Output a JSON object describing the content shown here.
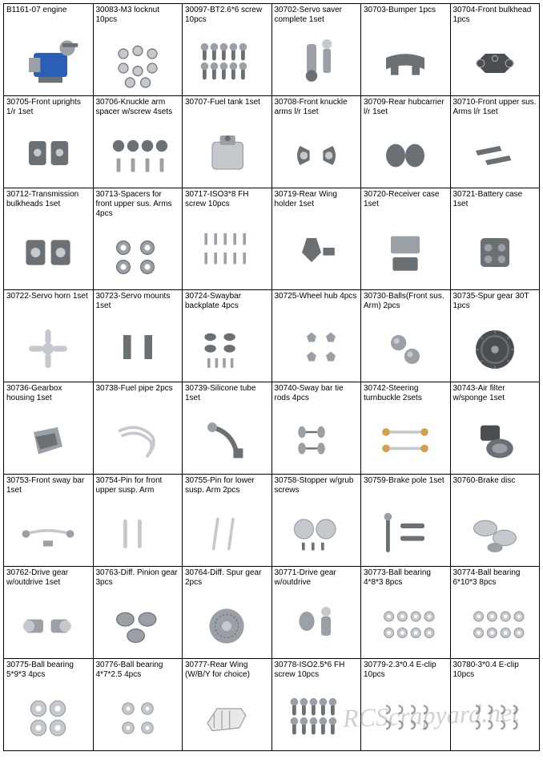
{
  "watermark": "RCScrapyard.net",
  "colors": {
    "border": "#000000",
    "text": "#000000",
    "partFill": "#9aa0a6",
    "partDark": "#6b7075",
    "partLight": "#c5c9cd",
    "engineBlue": "#2b5fb5"
  },
  "parts": [
    {
      "sku": "B1161-07 engine",
      "icon": "engine"
    },
    {
      "sku": "30083-M3 locknut 10pcs",
      "icon": "nuts"
    },
    {
      "sku": "30097-BT2.6*6 screw 10pcs",
      "icon": "screws10"
    },
    {
      "sku": "30702-Servo saver complete 1set",
      "icon": "servo-saver"
    },
    {
      "sku": "30703-Bumper 1pcs",
      "icon": "bumper"
    },
    {
      "sku": "30704-Front bulkhead 1pcs",
      "icon": "bulkhead-flat"
    },
    {
      "sku": "30705-Front uprights 1/r 1set",
      "icon": "uprights"
    },
    {
      "sku": "30706-Knuckle arm spacer w/screw 4sets",
      "icon": "spacer-screws"
    },
    {
      "sku": "30707-Fuel tank 1set",
      "icon": "fuel-tank"
    },
    {
      "sku": "30708-Front knuckle arms l/r 1set",
      "icon": "knuckles"
    },
    {
      "sku": "30709-Rear hubcarrier l/r 1set",
      "icon": "hubcarrier"
    },
    {
      "sku": "30710-Front upper sus. Arms l/r 1set",
      "icon": "arms"
    },
    {
      "sku": "30712-Transmission bulkheads 1set",
      "icon": "trans-bulk"
    },
    {
      "sku": "30713-Spacers for front upper sus. Arms 4pcs",
      "icon": "spacers4"
    },
    {
      "sku": "30717-ISO3*8 FH screw 10pcs",
      "icon": "fh-screws"
    },
    {
      "sku": "30719-Rear Wing holder 1set",
      "icon": "wing-holder"
    },
    {
      "sku": "30720-Receiver case 1set",
      "icon": "receiver-case"
    },
    {
      "sku": "30721-Battery case 1set",
      "icon": "battery-case"
    },
    {
      "sku": "30722-Servo horn 1set",
      "icon": "servo-horn"
    },
    {
      "sku": "30723-Servo mounts 1set",
      "icon": "servo-mounts"
    },
    {
      "sku": "30724-Swaybar backplate 4pcs",
      "icon": "backplate"
    },
    {
      "sku": "30725-Wheel hub 4pcs",
      "icon": "wheel-hub"
    },
    {
      "sku": "30730-Balls(Front sus. Arm) 2pcs",
      "icon": "balls2"
    },
    {
      "sku": "30735-Spur gear 30T 1pcs",
      "icon": "spur-gear"
    },
    {
      "sku": "30736-Gearbox housing 1set",
      "icon": "gearbox"
    },
    {
      "sku": "30738-Fuel pipe 2pcs",
      "icon": "fuel-pipe"
    },
    {
      "sku": "30739-Silicone tube 1set",
      "icon": "silicone-tube"
    },
    {
      "sku": "30740-Sway bar tie rods 4pcs",
      "icon": "tie-rods"
    },
    {
      "sku": "30742-Steering turnbuckle 2sets",
      "icon": "turnbuckle"
    },
    {
      "sku": "30743-Air filter w/sponge 1set",
      "icon": "air-filter"
    },
    {
      "sku": "30753-Front sway bar 1set",
      "icon": "sway-bar"
    },
    {
      "sku": "30754-Pin for front upper susp. Arm",
      "icon": "pins2"
    },
    {
      "sku": "30755-Pin for lower susp. Arm 2pcs",
      "icon": "pins2b"
    },
    {
      "sku": "30758-Stopper w/grub screws",
      "icon": "stoppers"
    },
    {
      "sku": "30759-Brake pole 1set",
      "icon": "brake-pole"
    },
    {
      "sku": "30760-Brake disc",
      "icon": "brake-disc"
    },
    {
      "sku": "30762-Drive gear w/outdrive 1set",
      "icon": "drive-gear"
    },
    {
      "sku": "30763-Diff. Pinion gear 3pcs",
      "icon": "pinion3"
    },
    {
      "sku": "30764-Diff. Spur gear 2pcs",
      "icon": "diff-spur"
    },
    {
      "sku": "30771-Drive gear w/outdrive",
      "icon": "drive-gear2"
    },
    {
      "sku": "30773-Ball bearing 4*8*3 8pcs",
      "icon": "bearings8"
    },
    {
      "sku": "30774-Ball bearing 6*10*3 8pcs",
      "icon": "bearings8b"
    },
    {
      "sku": "30775-Ball bearing 5*9*3 4pcs",
      "icon": "bearings4"
    },
    {
      "sku": "30776-Ball bearing 4*7*2.5 4pcs",
      "icon": "bearings4b"
    },
    {
      "sku": "30777-Rear Wing (W/B/Y for choice)",
      "icon": "rear-wing"
    },
    {
      "sku": "30778-ISO2.5*6 FH screw 10pcs",
      "icon": "fh-screws2"
    },
    {
      "sku": "30779-2.3*0.4 E-clip 10pcs",
      "icon": "eclips"
    },
    {
      "sku": "30780-3*0.4 E-clip 10pcs",
      "icon": "eclips2"
    }
  ]
}
